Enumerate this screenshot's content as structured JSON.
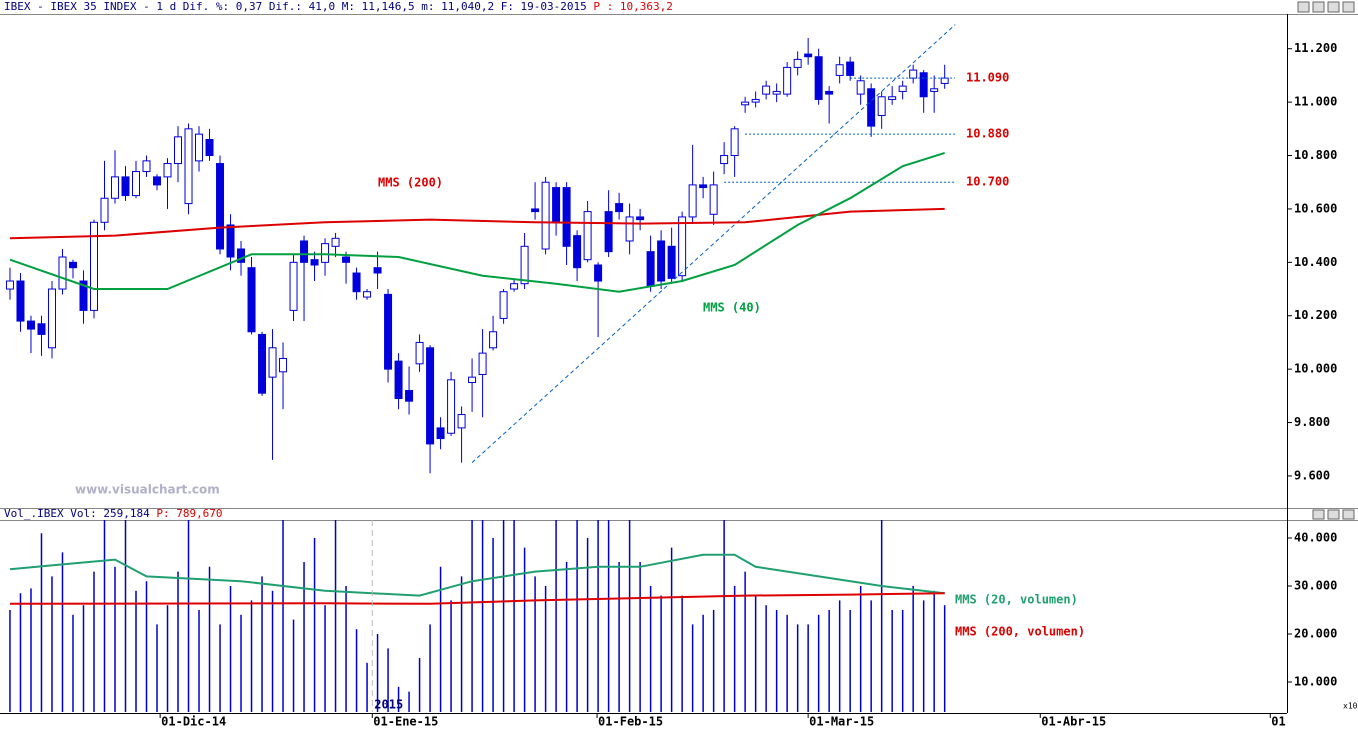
{
  "chart_data": [
    {
      "type": "candlestick",
      "title": "IBEX - IBEX 35 INDEX -  1 d Dif. %: 0,37 Dif.: 41,0 M: 11,146,5 m: 11,040,2 F: 19-03-2015",
      "title_price": "P : 10,363,2",
      "watermark": "www.visualchart.com",
      "color": "#0000dd",
      "xlim": [
        -0.95,
        121.5
      ],
      "ylim": [
        9480,
        11330
      ],
      "yticks": [
        {
          "value": 9600,
          "label": "9.600"
        },
        {
          "value": 9800,
          "label": "9.800"
        },
        {
          "value": 10000,
          "label": "10.000"
        },
        {
          "value": 10200,
          "label": "10.200"
        },
        {
          "value": 10400,
          "label": "10.400"
        },
        {
          "value": 10600,
          "label": "10.600"
        },
        {
          "value": 10800,
          "label": "10.800"
        },
        {
          "value": 11000,
          "label": "11.000"
        },
        {
          "value": 11200,
          "label": "11.200"
        }
      ],
      "open": [
        10300,
        10330,
        10180,
        10170,
        10080,
        10300,
        10400,
        10330,
        10220,
        10550,
        10640,
        10720,
        10650,
        10740,
        10720,
        10720,
        10770,
        10620,
        10780,
        10860,
        10770,
        10540,
        10450,
        10380,
        10130,
        9970,
        9990,
        10220,
        10480,
        10410,
        10400,
        10460,
        10420,
        10360,
        10270,
        10380,
        10280,
        10030,
        9920,
        10020,
        10080,
        9780,
        9760,
        9780,
        9950,
        9980,
        10080,
        10190,
        10300,
        10320,
        10600,
        10450,
        10680,
        10680,
        10500,
        10410,
        10390,
        10590,
        10620,
        10480,
        10570,
        10440,
        10480,
        10460,
        10350,
        10570,
        10690,
        10580,
        10770,
        10800,
        10990,
        11000,
        11030,
        11030,
        11030,
        11130,
        11180,
        11170,
        11040,
        11100,
        11150,
        11030,
        11050,
        10950,
        11010,
        11040,
        11090,
        11110,
        11040,
        11070
      ],
      "high": [
        10380,
        10360,
        10200,
        10200,
        10330,
        10450,
        10410,
        10370,
        10560,
        10780,
        10820,
        10760,
        10780,
        10800,
        10730,
        10790,
        10910,
        10920,
        10910,
        10900,
        10800,
        10580,
        10480,
        10420,
        10140,
        10150,
        10100,
        10430,
        10500,
        10440,
        10490,
        10510,
        10440,
        10380,
        10300,
        10440,
        10300,
        10060,
        10010,
        10130,
        10090,
        9820,
        9990,
        9860,
        10040,
        10150,
        10200,
        10300,
        10340,
        10510,
        10700,
        10720,
        10700,
        10700,
        10520,
        10630,
        10400,
        10670,
        10660,
        10620,
        10600,
        10500,
        10520,
        10530,
        10590,
        10840,
        10720,
        10740,
        10850,
        10910,
        11020,
        11040,
        11080,
        11070,
        11150,
        11190,
        11240,
        11200,
        11060,
        11170,
        11170,
        11100,
        11070,
        11040,
        11060,
        11080,
        11140,
        11120,
        11100,
        11140
      ],
      "low": [
        10260,
        10140,
        10060,
        10050,
        10040,
        10280,
        10340,
        10170,
        10190,
        10520,
        10620,
        10630,
        10640,
        10720,
        10670,
        10600,
        10700,
        10580,
        10740,
        10780,
        10430,
        10370,
        10350,
        10130,
        9900,
        9660,
        9850,
        10180,
        10180,
        10330,
        10350,
        10420,
        10320,
        10260,
        10260,
        10300,
        9950,
        9850,
        9830,
        9990,
        9610,
        9700,
        9750,
        9650,
        9840,
        9820,
        10070,
        10170,
        10290,
        10300,
        10560,
        10430,
        10500,
        10390,
        10330,
        10400,
        10120,
        10420,
        10560,
        10430,
        10520,
        10290,
        10300,
        10320,
        10330,
        10550,
        10640,
        10540,
        10730,
        10720,
        10960,
        10980,
        11010,
        11000,
        11020,
        11100,
        11140,
        10990,
        10920,
        11070,
        11080,
        10990,
        10870,
        10900,
        10990,
        11010,
        11070,
        10960,
        10960,
        11050
      ],
      "close": [
        10330,
        10180,
        10150,
        10130,
        10300,
        10420,
        10380,
        10220,
        10550,
        10640,
        10720,
        10650,
        10740,
        10780,
        10690,
        10770,
        10870,
        10900,
        10880,
        10800,
        10450,
        10420,
        10400,
        10140,
        9910,
        10080,
        10040,
        10400,
        10400,
        10390,
        10470,
        10490,
        10400,
        10290,
        10290,
        10360,
        10000,
        9890,
        9880,
        10100,
        9720,
        9740,
        9960,
        9830,
        9970,
        10060,
        10140,
        10290,
        10320,
        10460,
        10590,
        10700,
        10550,
        10460,
        10380,
        10590,
        10330,
        10440,
        10590,
        10570,
        10560,
        10310,
        10330,
        10340,
        10570,
        10690,
        10680,
        10690,
        10800,
        10900,
        11000,
        11010,
        11060,
        11040,
        11130,
        11160,
        11170,
        11010,
        11030,
        11140,
        11100,
        11080,
        10910,
        11020,
        11020,
        11060,
        11120,
        11020,
        11050,
        11090
      ],
      "lines": [
        {
          "name": "MMS (200)",
          "color": "#dd0000",
          "x": [
            0,
            10,
            20,
            30,
            40,
            50,
            60,
            70,
            80,
            89
          ],
          "values": [
            10490,
            10500,
            10530,
            10550,
            10560,
            10550,
            10545,
            10550,
            10590,
            10600
          ]
        },
        {
          "name": "MMS (40)",
          "color": "#00a040",
          "x": [
            0,
            8,
            15,
            23,
            30,
            37,
            45,
            52,
            58,
            64,
            69,
            75,
            80,
            85,
            89
          ],
          "values": [
            10410,
            10300,
            10300,
            10430,
            10430,
            10420,
            10350,
            10320,
            10290,
            10330,
            10390,
            10540,
            10640,
            10760,
            10810
          ]
        }
      ],
      "levels": [
        {
          "value": 11090,
          "label": "11.090"
        },
        {
          "value": 10880,
          "label": "10.880"
        },
        {
          "value": 10700,
          "label": "10.700"
        }
      ],
      "trendline": {
        "x": [
          44,
          90
        ],
        "values": [
          9650,
          11290
        ]
      }
    },
    {
      "type": "bar",
      "title": "Vol_.IBEX Vol: 259,184",
      "title_price": "P: 789,670",
      "scale_note": "x10",
      "color": "#0000cc",
      "xlim": [
        -0.95,
        121.5
      ],
      "ylim": [
        3750,
        43750
      ],
      "yticks": [
        {
          "value": 10000,
          "label": "10.000"
        },
        {
          "value": 20000,
          "label": "20.000"
        },
        {
          "value": 30000,
          "label": "30.000"
        },
        {
          "value": 40000,
          "label": "40.000"
        }
      ],
      "xticks": [
        {
          "value": 14.3,
          "label": "01-Dic-14"
        },
        {
          "value": 34.5,
          "label": "01-Ene-15"
        },
        {
          "value": 55.9,
          "label": "01-Feb-15"
        },
        {
          "value": 76,
          "label": "01-Mar-15"
        },
        {
          "value": 98.1,
          "label": "01-Abr-15"
        },
        {
          "value": 120,
          "label": "01"
        }
      ],
      "year_marker": {
        "value": 34.5,
        "label": "2015"
      },
      "values": [
        25000,
        28500,
        29500,
        41000,
        32000,
        37000,
        24000,
        26000,
        33000,
        45000,
        34000,
        45000,
        29000,
        31000,
        22000,
        26000,
        33000,
        45000,
        25000,
        34000,
        22000,
        30000,
        24000,
        27000,
        32000,
        29000,
        45000,
        23000,
        35000,
        40000,
        26000,
        45000,
        30000,
        21000,
        14000,
        20000,
        17000,
        9000,
        8000,
        15000,
        22000,
        34000,
        27000,
        32000,
        45000,
        45000,
        40000,
        45000,
        45000,
        38000,
        32000,
        30000,
        45000,
        35000,
        45000,
        40000,
        45000,
        45000,
        35000,
        45000,
        35000,
        30000,
        28000,
        38000,
        28000,
        22000,
        24000,
        25000,
        45000,
        30000,
        33000,
        28000,
        26000,
        25000,
        24000,
        22000,
        22000,
        24000,
        25000,
        27000,
        25000,
        30000,
        27000,
        45000,
        25000,
        25000,
        30000,
        27000,
        29000,
        26000
      ],
      "lines": [
        {
          "name": "MMS (20, volumen)",
          "color": "#20a070",
          "x": [
            0,
            5,
            10,
            13,
            22,
            30,
            39,
            44,
            50,
            56,
            60,
            66,
            69,
            71,
            77,
            83,
            89
          ],
          "values": [
            33500,
            34500,
            35500,
            32000,
            31000,
            29000,
            28000,
            31000,
            33000,
            34000,
            34000,
            36500,
            36500,
            34000,
            32000,
            30000,
            28500
          ]
        },
        {
          "name": "MMS (200, volumen)",
          "color": "#dd0000",
          "x": [
            0,
            30,
            40,
            50,
            60,
            70,
            80,
            89
          ],
          "values": [
            26300,
            26400,
            26300,
            27000,
            27500,
            28000,
            28200,
            28500
          ]
        }
      ]
    }
  ]
}
